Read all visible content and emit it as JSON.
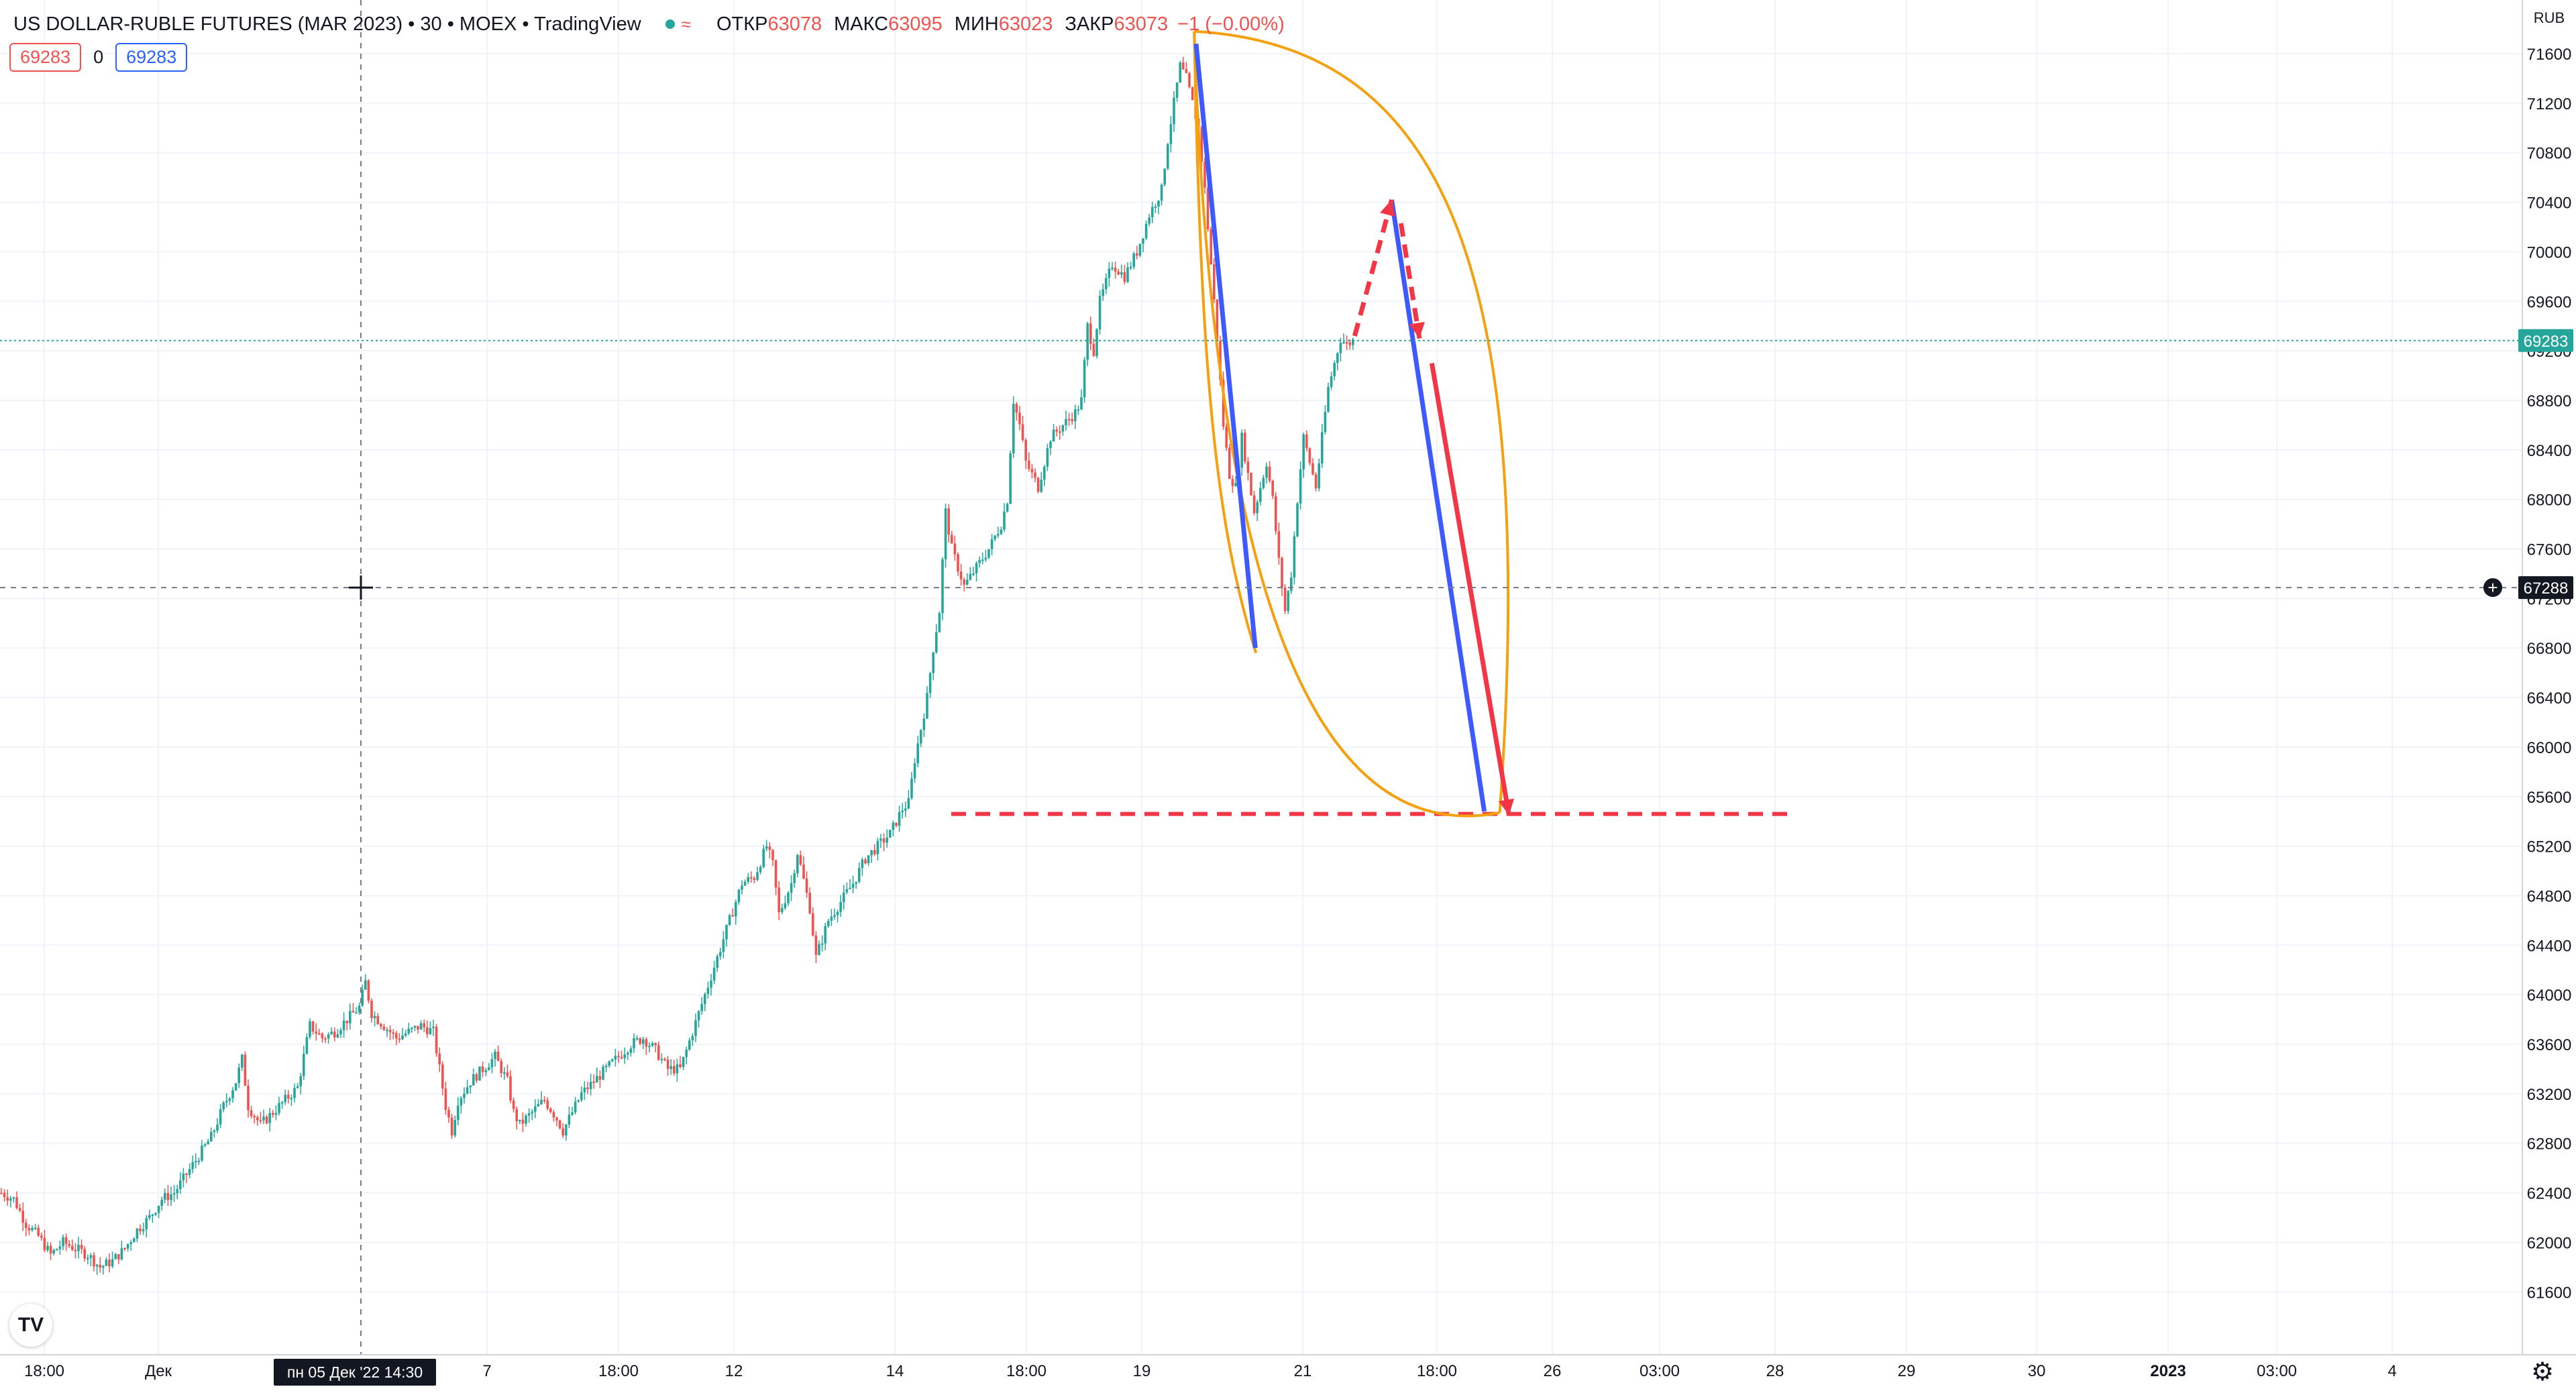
{
  "legend": {
    "symbol": "US DOLLAR-RUBLE FUTURES (MAR 2023) • 30 • MOEX • TradingView",
    "status_icon": "green-dot-icon",
    "wave_icon": "≈",
    "open_label": "ОТКР",
    "open_value": "63078",
    "high_label": "МАКС",
    "high_value": "63095",
    "low_label": "МИН",
    "low_value": "63023",
    "close_label": "ЗАКР",
    "close_value": "63073",
    "change": "−1 (−0.00%)"
  },
  "pills": {
    "bid": "69283",
    "spread": "0",
    "ask": "69283"
  },
  "logo_text": "TV",
  "settings_icon": "gear-icon",
  "colors": {
    "up": "#26a69a",
    "down": "#ef5350",
    "grid": "#f0f3fa",
    "blue_line": "#3d5afe",
    "red_line": "#f23645",
    "orange_curve": "#f5a00f",
    "last_price_bg": "#26a69a",
    "crosshair_label_bg": "#131722"
  },
  "chart_data": {
    "type": "candlestick",
    "currency": "RUB",
    "y_range": [
      61400,
      71800
    ],
    "y_ticks": [
      61600,
      62000,
      62400,
      62800,
      63200,
      63600,
      64000,
      64400,
      64800,
      65200,
      65600,
      66000,
      66400,
      66800,
      67200,
      67600,
      68000,
      68400,
      68800,
      69200,
      69600,
      70000,
      70400,
      70800,
      71200,
      71600
    ],
    "x_ticks": [
      "18:00",
      "Дек",
      "7",
      "18:00",
      "12",
      "14",
      "18:00",
      "19",
      "21",
      "18:00",
      "26",
      "03:00",
      "28",
      "29",
      "30",
      "2023",
      "03:00",
      "4"
    ],
    "bold_x_ticks": [
      "2023"
    ],
    "last_price": 69283,
    "crosshair": {
      "price": 67288,
      "time_label": "пн 05 Дек '22   14:30"
    },
    "price_path": [
      [
        0,
        62400
      ],
      [
        2,
        62350
      ],
      [
        4,
        62150
      ],
      [
        6,
        62050
      ],
      [
        8,
        61900
      ],
      [
        10,
        62000
      ],
      [
        12,
        61950
      ],
      [
        14,
        61900
      ],
      [
        16,
        61800
      ],
      [
        18,
        61850
      ],
      [
        20,
        61950
      ],
      [
        22,
        62100
      ],
      [
        24,
        62200
      ],
      [
        26,
        62350
      ],
      [
        28,
        62400
      ],
      [
        30,
        62550
      ],
      [
        32,
        62700
      ],
      [
        34,
        62850
      ],
      [
        36,
        63100
      ],
      [
        38,
        63300
      ],
      [
        39,
        63480
      ],
      [
        40,
        63100
      ],
      [
        42,
        62950
      ],
      [
        44,
        63050
      ],
      [
        46,
        63150
      ],
      [
        48,
        63250
      ],
      [
        50,
        63750
      ],
      [
        52,
        63650
      ],
      [
        54,
        63700
      ],
      [
        56,
        63800
      ],
      [
        58,
        63900
      ],
      [
        59,
        64100
      ],
      [
        60,
        63850
      ],
      [
        62,
        63750
      ],
      [
        64,
        63650
      ],
      [
        66,
        63700
      ],
      [
        68,
        63750
      ],
      [
        70,
        63700
      ],
      [
        72,
        63100
      ],
      [
        73,
        62900
      ],
      [
        74,
        63150
      ],
      [
        76,
        63300
      ],
      [
        78,
        63400
      ],
      [
        80,
        63500
      ],
      [
        82,
        63300
      ],
      [
        83,
        63050
      ],
      [
        84,
        62950
      ],
      [
        86,
        63050
      ],
      [
        88,
        63150
      ],
      [
        90,
        63000
      ],
      [
        91,
        62900
      ],
      [
        92,
        63000
      ],
      [
        94,
        63200
      ],
      [
        96,
        63300
      ],
      [
        98,
        63400
      ],
      [
        100,
        63500
      ],
      [
        102,
        63600
      ],
      [
        104,
        63650
      ],
      [
        106,
        63550
      ],
      [
        108,
        63400
      ],
      [
        110,
        63400
      ],
      [
        112,
        63700
      ],
      [
        114,
        64000
      ],
      [
        116,
        64300
      ],
      [
        118,
        64600
      ],
      [
        120,
        64900
      ],
      [
        122,
        64950
      ],
      [
        124,
        65200
      ],
      [
        125,
        65050
      ],
      [
        126,
        64650
      ],
      [
        128,
        64900
      ],
      [
        129,
        65150
      ],
      [
        131,
        64700
      ],
      [
        132,
        64300
      ],
      [
        134,
        64600
      ],
      [
        136,
        64750
      ],
      [
        138,
        64900
      ],
      [
        140,
        65100
      ],
      [
        142,
        65200
      ],
      [
        144,
        65300
      ],
      [
        146,
        65500
      ],
      [
        147,
        65550
      ],
      [
        148,
        65900
      ],
      [
        150,
        66400
      ],
      [
        151,
        66800
      ],
      [
        152,
        67100
      ],
      [
        153,
        67900
      ],
      [
        154,
        67600
      ],
      [
        156,
        67300
      ],
      [
        158,
        67450
      ],
      [
        160,
        67600
      ],
      [
        162,
        67800
      ],
      [
        163,
        68000
      ],
      [
        164,
        68800
      ],
      [
        165,
        68600
      ],
      [
        166,
        68300
      ],
      [
        168,
        68100
      ],
      [
        170,
        68500
      ],
      [
        172,
        68600
      ],
      [
        174,
        68700
      ],
      [
        175,
        68800
      ],
      [
        176,
        69400
      ],
      [
        177,
        69200
      ],
      [
        178,
        69600
      ],
      [
        180,
        69900
      ],
      [
        182,
        69800
      ],
      [
        184,
        70000
      ],
      [
        186,
        70300
      ],
      [
        188,
        70500
      ],
      [
        189,
        70900
      ],
      [
        190,
        71200
      ],
      [
        191,
        71500
      ],
      [
        192,
        71400
      ],
      [
        194,
        71000
      ],
      [
        195,
        70500
      ],
      [
        196,
        69900
      ],
      [
        197,
        69300
      ],
      [
        198,
        68600
      ],
      [
        199,
        68200
      ],
      [
        200,
        68100
      ],
      [
        201,
        68500
      ],
      [
        202,
        68200
      ],
      [
        203,
        67900
      ],
      [
        205,
        68300
      ],
      [
        206,
        68000
      ],
      [
        207,
        67500
      ],
      [
        208,
        67100
      ],
      [
        209,
        67400
      ],
      [
        210,
        68000
      ],
      [
        211,
        68500
      ],
      [
        212,
        68300
      ],
      [
        213,
        68100
      ],
      [
        214,
        68500
      ],
      [
        215,
        68900
      ],
      [
        216,
        69100
      ],
      [
        217,
        69300
      ],
      [
        218,
        69250
      ],
      [
        219,
        69283
      ]
    ],
    "annotations": {
      "support_level": {
        "price": 65460,
        "style": "dashed",
        "color": "red"
      },
      "orange_arc": {
        "from": [
          193.5,
          71780
        ],
        "via": [
          243,
          65470
        ],
        "to": [
          203.5,
          66760
        ]
      },
      "blue_lines": [
        {
          "from": [
            193.8,
            71680
          ],
          "to": [
            203.4,
            66800
          ]
        },
        {
          "from": [
            225.5,
            70420
          ],
          "to": [
            240.5,
            65480
          ]
        }
      ],
      "red_arrows": [
        {
          "from": [
            219.5,
            69320
          ],
          "to": [
            225.5,
            70420
          ],
          "dashed": true
        },
        {
          "from": [
            227,
            70230
          ],
          "to": [
            230,
            69300
          ],
          "dashed": true
        },
        {
          "from": [
            232,
            69100
          ],
          "to": [
            244.5,
            65450
          ],
          "dashed": false
        }
      ]
    }
  }
}
